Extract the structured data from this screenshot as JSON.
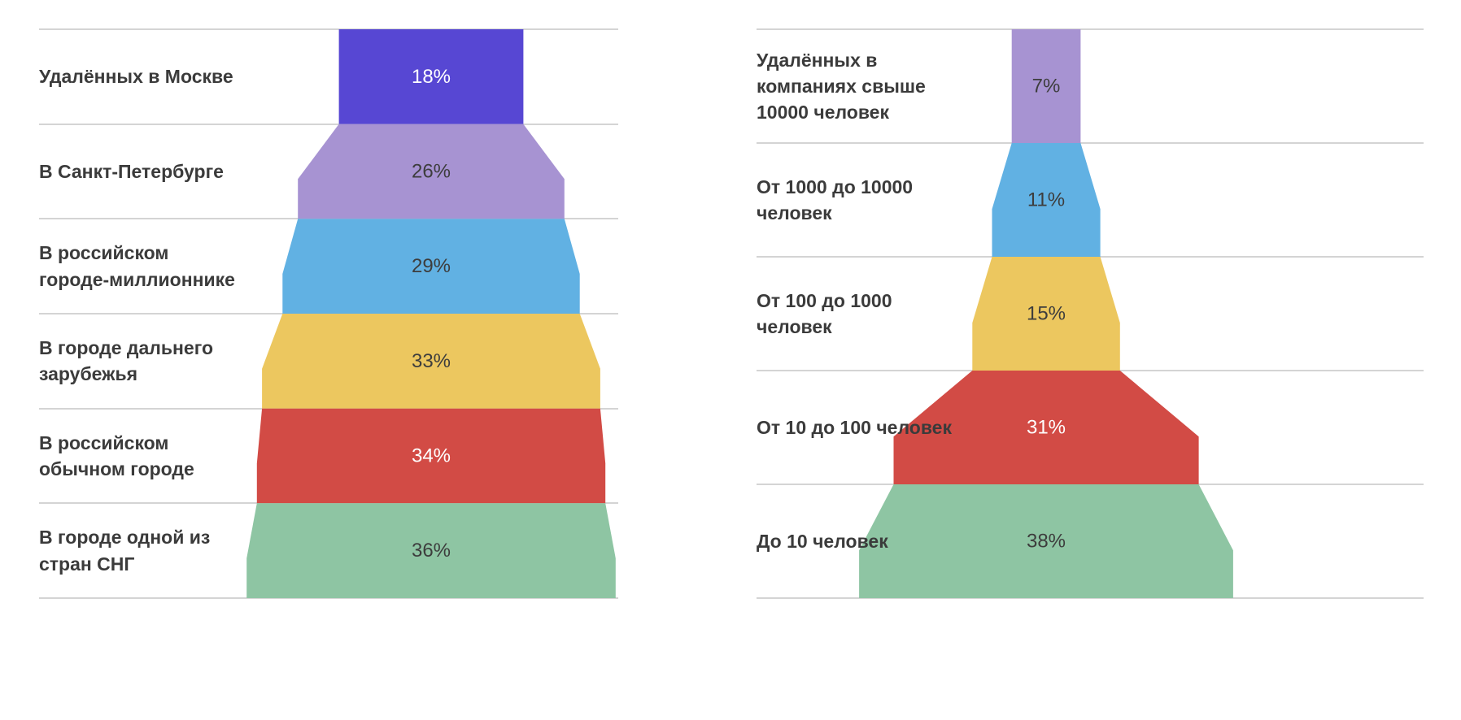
{
  "style": {
    "background": "#ffffff",
    "grid_color": "#d4d4d4",
    "label_color": "#3b3b3b"
  },
  "chart_data": [
    {
      "type": "funnel",
      "name": "remote-workers-by-city",
      "unit": "%",
      "grid": true,
      "label_position": "left",
      "categories": [
        "Удалённых в Москве",
        "В Санкт-Петербурге",
        "В российском\nгороде-миллионнике",
        "В городе дальнего\nзарубежья",
        "В российском\nобычном городе",
        "В городе одной из\nстран СНГ"
      ],
      "values": [
        18,
        26,
        29,
        33,
        34,
        36
      ],
      "value_labels": [
        "18%",
        "26%",
        "29%",
        "33%",
        "34%",
        "36%"
      ],
      "segment_colors": [
        "#5747d3",
        "#a793d2",
        "#61b1e3",
        "#ecc75f",
        "#d24b45",
        "#8ec5a3"
      ],
      "value_text_colors": [
        "#ffffff",
        "#3d3d3d",
        "#3d3d3d",
        "#3d3d3d",
        "#ffffff",
        "#3d3d3d"
      ]
    },
    {
      "type": "funnel",
      "name": "remote-workers-by-company-size",
      "unit": "%",
      "grid": true,
      "label_position": "left",
      "categories": [
        "Удалённых в\nкомпаниях свыше\n10000 человек",
        "От 1000 до 10000\nчеловек",
        "От 100 до 1000\nчеловек",
        "От 10 до 100 человек",
        "До 10 человек"
      ],
      "values": [
        7,
        11,
        15,
        31,
        38
      ],
      "value_labels": [
        "7%",
        "11%",
        "15%",
        "31%",
        "38%"
      ],
      "segment_colors": [
        "#a793d2",
        "#61b1e3",
        "#ecc75f",
        "#d24b45",
        "#8ec5a3"
      ],
      "value_text_colors": [
        "#3d3d3d",
        "#3d3d3d",
        "#3d3d3d",
        "#ffffff",
        "#3d3d3d"
      ]
    }
  ]
}
